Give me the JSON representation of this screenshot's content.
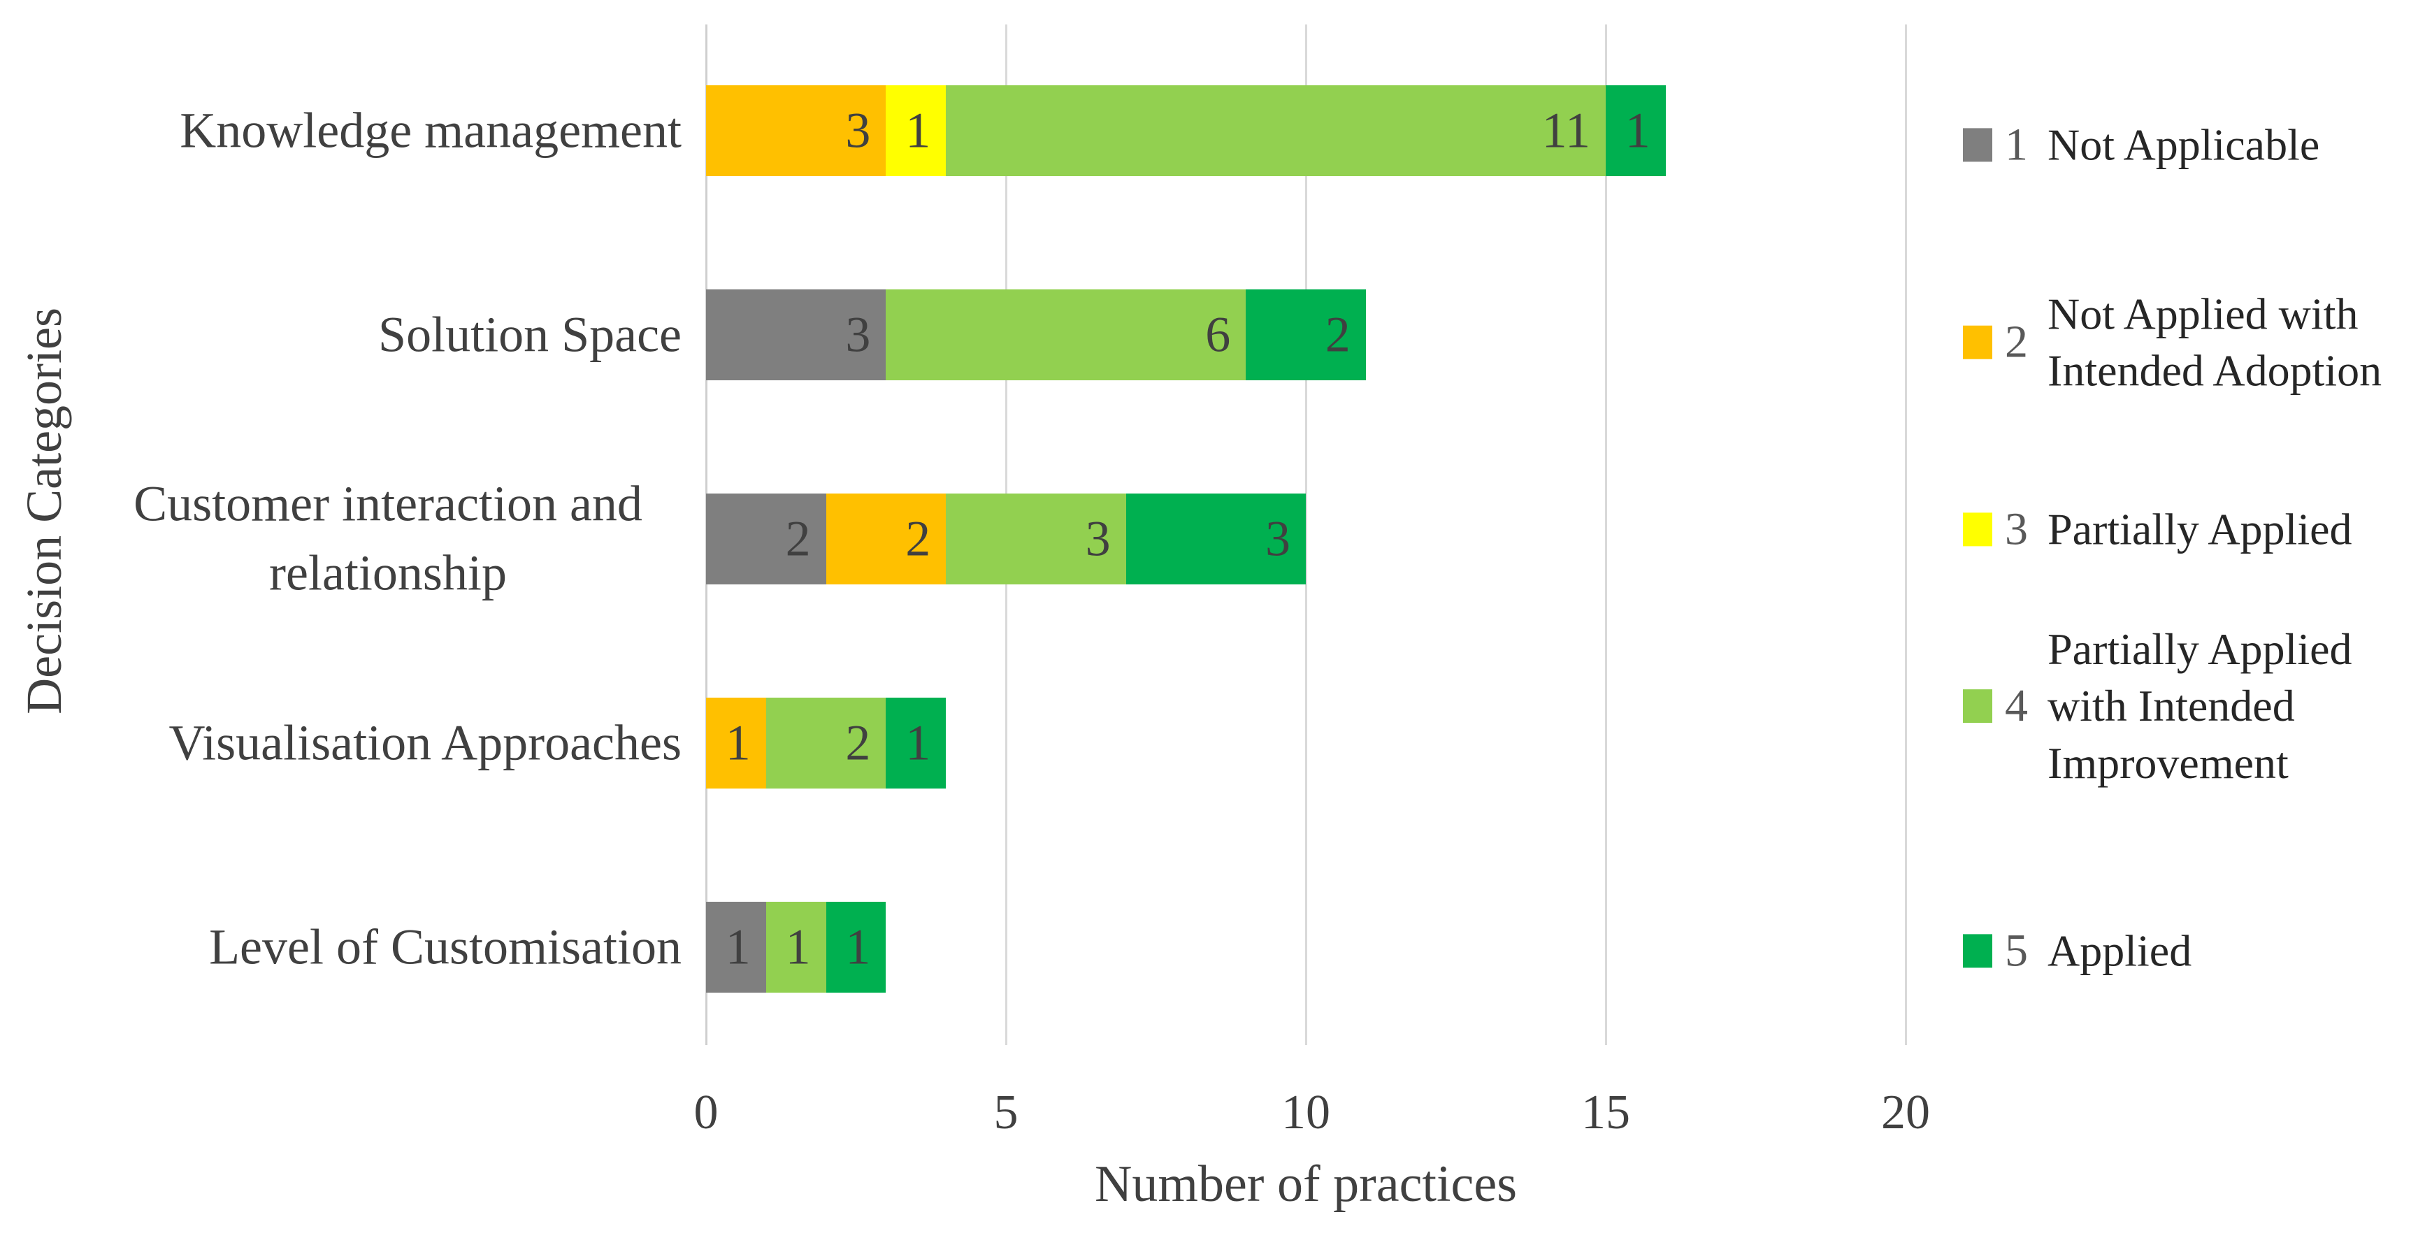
{
  "chart_data": {
    "type": "bar",
    "orientation": "horizontal",
    "stacked": true,
    "title": "",
    "xlabel": "Number of practices",
    "ylabel": "Decision Categories",
    "xlim": [
      0,
      20
    ],
    "xticks": [
      "0",
      "5",
      "10",
      "15",
      "20"
    ],
    "grid": "vertical",
    "legend_position": "right",
    "categories": [
      "Knowledge management",
      "Solution Space",
      "Customer interaction and relationship",
      "Visualisation Approaches",
      "Level of Customisation"
    ],
    "series": [
      {
        "key": "1",
        "name": "Not Applicable",
        "color": "#7F7F7F",
        "values": [
          0,
          3,
          2,
          0,
          1
        ]
      },
      {
        "key": "2",
        "name": "Not Applied with Intended Adoption",
        "color": "#FFC000",
        "values": [
          3,
          0,
          2,
          1,
          0
        ]
      },
      {
        "key": "3",
        "name": "Partially Applied",
        "color": "#FFFF00",
        "values": [
          1,
          0,
          0,
          0,
          0
        ]
      },
      {
        "key": "4",
        "name": "Partially Applied with Intended Improvement",
        "color": "#92D050",
        "values": [
          11,
          6,
          3,
          2,
          1
        ]
      },
      {
        "key": "5",
        "name": "Applied",
        "color": "#00B050",
        "values": [
          1,
          2,
          3,
          1,
          1
        ]
      }
    ],
    "colors": {
      "gridline": "#D9D9D9",
      "text": "#404040",
      "legend_text": "#262626"
    }
  }
}
